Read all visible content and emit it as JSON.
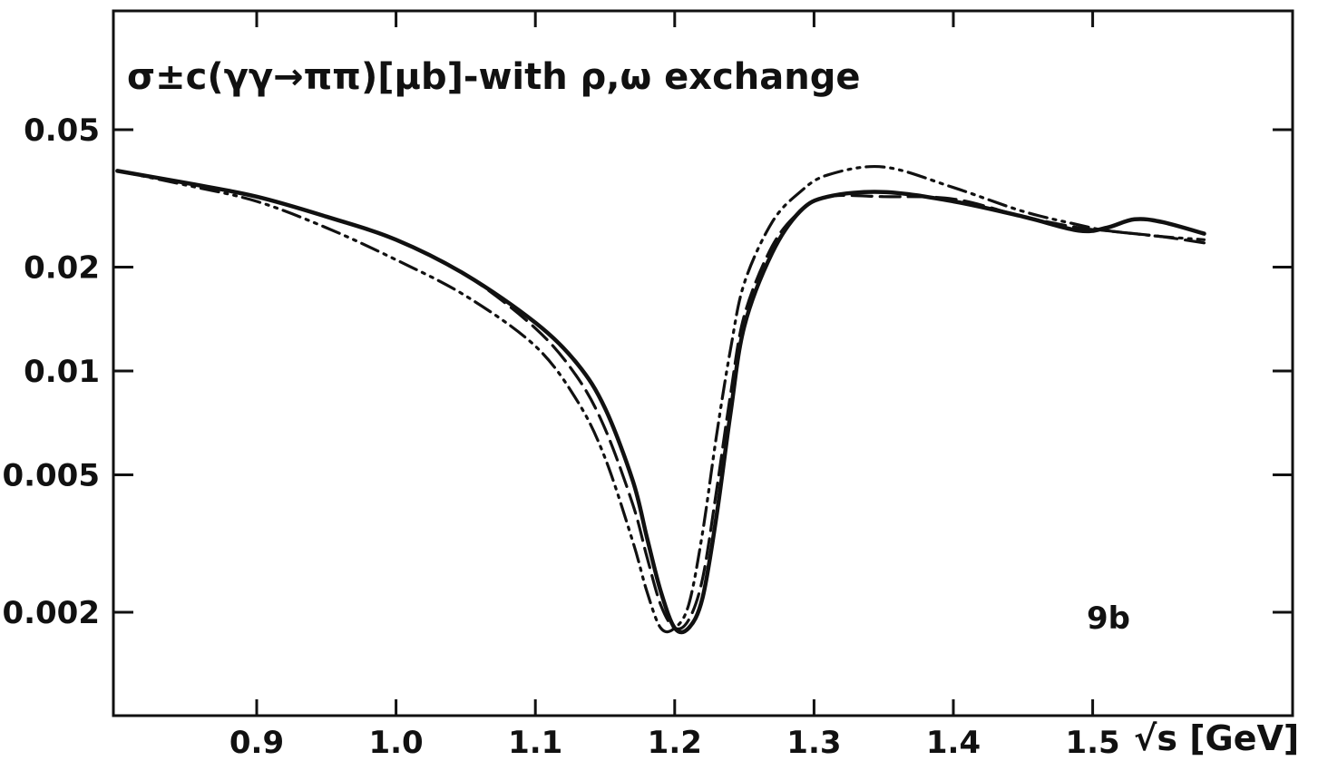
{
  "chart_data": {
    "type": "line",
    "title": "σ±c(γγ→ππ)[μb]-with ρ,ω exchange",
    "panel_label": "9b",
    "xlabel": "√s [GeV]",
    "ylabel": "",
    "yscale": "log",
    "xlim": [
      0.8,
      1.58
    ],
    "ylim": [
      0.001,
      0.09
    ],
    "x_ticks": [
      0.9,
      1.0,
      1.1,
      1.2,
      1.3,
      1.4,
      1.5
    ],
    "x_tick_labels": [
      "0.9",
      "1.0",
      "1.1",
      "1.2",
      "1.3",
      "1.4",
      "1.5"
    ],
    "y_ticks": [
      0.002,
      0.005,
      0.01,
      0.02,
      0.05
    ],
    "y_tick_labels": [
      "0.002",
      "0.005",
      "0.01",
      "0.02",
      "0.05"
    ],
    "grid": false,
    "series": [
      {
        "style": "solid",
        "x": [
          0.8,
          0.85,
          0.9,
          0.95,
          1.0,
          1.05,
          1.1,
          1.13,
          1.15,
          1.17,
          1.18,
          1.19,
          1.2,
          1.21,
          1.22,
          1.23,
          1.24,
          1.25,
          1.27,
          1.29,
          1.31,
          1.35,
          1.4,
          1.45,
          1.49,
          1.51,
          1.53,
          1.55,
          1.58
        ],
        "y": [
          0.038,
          0.035,
          0.032,
          0.028,
          0.024,
          0.019,
          0.0138,
          0.0105,
          0.0078,
          0.0048,
          0.0033,
          0.0023,
          0.0018,
          0.0018,
          0.0022,
          0.0038,
          0.0075,
          0.0135,
          0.022,
          0.029,
          0.032,
          0.033,
          0.031,
          0.028,
          0.0255,
          0.026,
          0.0275,
          0.027,
          0.025
        ]
      },
      {
        "style": "dashed",
        "x": [
          0.8,
          0.85,
          0.9,
          0.95,
          1.0,
          1.05,
          1.1,
          1.13,
          1.15,
          1.17,
          1.18,
          1.19,
          1.2,
          1.21,
          1.22,
          1.23,
          1.24,
          1.25,
          1.27,
          1.29,
          1.31,
          1.35,
          1.4,
          1.45,
          1.49,
          1.51,
          1.53,
          1.55,
          1.58
        ],
        "y": [
          0.038,
          0.035,
          0.032,
          0.028,
          0.024,
          0.019,
          0.0133,
          0.0096,
          0.0068,
          0.0041,
          0.0029,
          0.0021,
          0.0018,
          0.0019,
          0.0025,
          0.0045,
          0.0085,
          0.0145,
          0.023,
          0.029,
          0.032,
          0.032,
          0.0315,
          0.028,
          0.026,
          0.0255,
          0.025,
          0.0245,
          0.0235
        ]
      },
      {
        "style": "dash-dot-dot",
        "x": [
          0.8,
          0.85,
          0.9,
          0.95,
          1.0,
          1.05,
          1.1,
          1.13,
          1.15,
          1.17,
          1.18,
          1.19,
          1.2,
          1.21,
          1.22,
          1.23,
          1.24,
          1.25,
          1.27,
          1.29,
          1.31,
          1.35,
          1.4,
          1.45,
          1.49,
          1.51,
          1.53,
          1.55,
          1.58
        ],
        "y": [
          0.038,
          0.0345,
          0.031,
          0.026,
          0.021,
          0.0165,
          0.0118,
          0.0082,
          0.0056,
          0.0032,
          0.0023,
          0.0018,
          0.0018,
          0.0021,
          0.0034,
          0.0065,
          0.0115,
          0.018,
          0.027,
          0.033,
          0.037,
          0.039,
          0.034,
          0.029,
          0.0265,
          0.0255,
          0.025,
          0.0245,
          0.024
        ]
      }
    ]
  }
}
